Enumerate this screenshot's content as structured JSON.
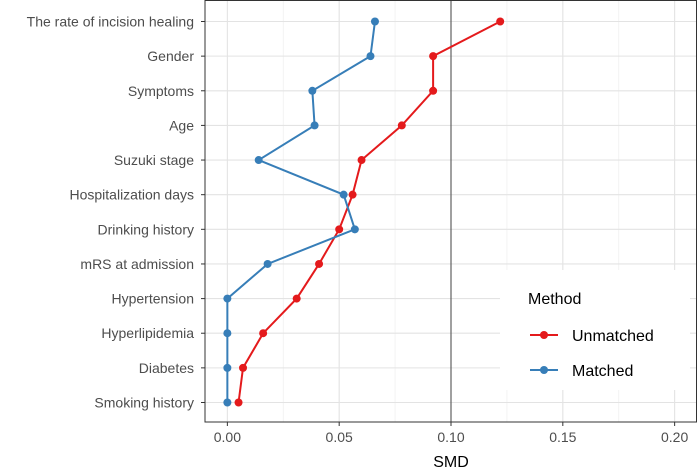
{
  "chart_data": {
    "type": "line",
    "orientation": "horizontal",
    "title": "",
    "xlabel": "SMD",
    "ylabel": "",
    "xlim": [
      -0.01,
      0.21
    ],
    "xticks": [
      0.0,
      0.05,
      0.1,
      0.15,
      0.2
    ],
    "xtick_labels": [
      "0.00",
      "0.05",
      "0.10",
      "0.15",
      "0.20"
    ],
    "reference_line": 0.1,
    "grid": true,
    "categories": [
      "The rate of incision healing",
      "Gender",
      "Symptoms",
      "Age",
      "Suzuki stage",
      "Hospitalization days",
      "Drinking history",
      "mRS at admission",
      "Hypertension",
      "Hyperlipidemia",
      "Diabetes",
      "Smoking history"
    ],
    "series": [
      {
        "name": "Unmatched",
        "color": "#e41a1c",
        "values": [
          0.122,
          0.092,
          0.092,
          0.078,
          0.06,
          0.056,
          0.05,
          0.041,
          0.031,
          0.016,
          0.007,
          0.005
        ]
      },
      {
        "name": "Matched",
        "color": "#377eb8",
        "values": [
          0.066,
          0.064,
          0.038,
          0.039,
          0.014,
          0.052,
          0.057,
          0.018,
          0.0,
          0.0,
          0.0,
          0.0
        ]
      }
    ],
    "legend": {
      "title": "Method",
      "position": "right"
    }
  }
}
